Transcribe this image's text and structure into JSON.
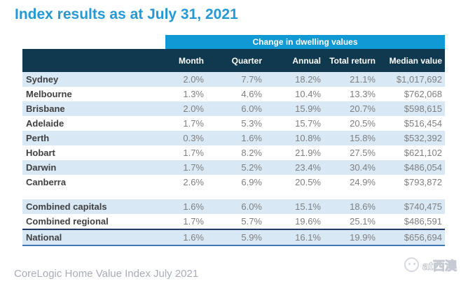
{
  "title": "Index results as at July 31, 2021",
  "colors": {
    "title_blue": "#2499d4",
    "band_blue": "#1199d6",
    "header_navy": "#10394f",
    "row_alt_blue": "#d9e8f5",
    "value_gray": "#7f7f7f",
    "label_dark": "#404040",
    "national_top": "#1f3864",
    "national_bottom": "#3f76b5",
    "footer_gray": "#a8adb8"
  },
  "chart_data": {
    "type": "table",
    "title": "Change in dwelling values",
    "columns": [
      "",
      "Month",
      "Quarter",
      "Annual",
      "Total return",
      "Median value"
    ],
    "rows": [
      [
        "Sydney",
        "2.0%",
        "7.7%",
        "18.2%",
        "21.1%",
        "$1,017,692"
      ],
      [
        "Melbourne",
        "1.3%",
        "4.6%",
        "10.4%",
        "13.3%",
        "$762,068"
      ],
      [
        "Brisbane",
        "2.0%",
        "6.0%",
        "15.9%",
        "20.7%",
        "$598,615"
      ],
      [
        "Adelaide",
        "1.7%",
        "5.3%",
        "15.7%",
        "20.5%",
        "$516,454"
      ],
      [
        "Perth",
        "0.3%",
        "1.6%",
        "10.8%",
        "15.8%",
        "$532,392"
      ],
      [
        "Hobart",
        "1.7%",
        "8.2%",
        "21.9%",
        "27.5%",
        "$621,102"
      ],
      [
        "Darwin",
        "1.7%",
        "5.2%",
        "23.4%",
        "30.4%",
        "$486,054"
      ],
      [
        "Canberra",
        "2.6%",
        "6.9%",
        "20.5%",
        "24.9%",
        "$793,872"
      ]
    ],
    "summary_rows": [
      [
        "Combined capitals",
        "1.6%",
        "6.0%",
        "15.1%",
        "18.6%",
        "$740,475"
      ],
      [
        "Combined regional",
        "1.7%",
        "5.7%",
        "19.6%",
        "25.1%",
        "$486,591"
      ]
    ],
    "national_row": [
      "National",
      "1.6%",
      "5.9%",
      "16.1%",
      "19.9%",
      "$656,694"
    ]
  },
  "footer": {
    "source_text": "CoreLogic Home Value Index July 2021"
  },
  "watermark": {
    "text": "at西澳"
  }
}
